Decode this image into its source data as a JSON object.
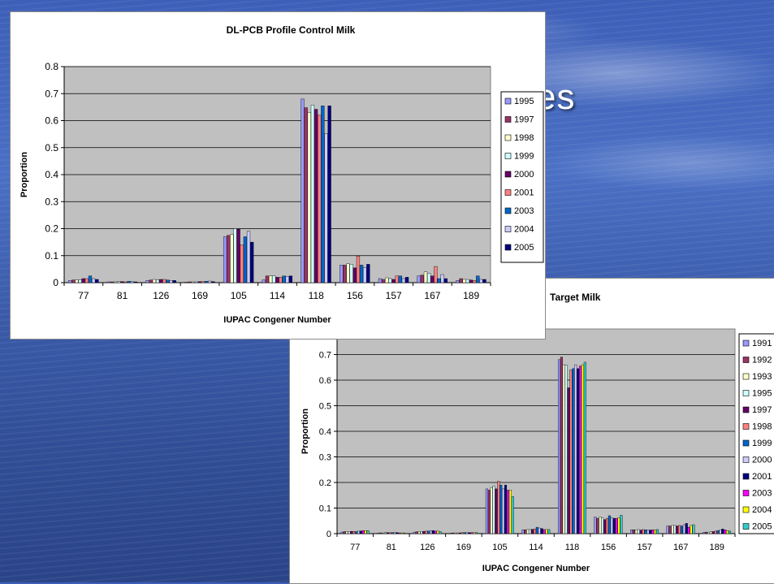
{
  "background": {
    "title_fragment": "es",
    "colors": {
      "sky": "#4a6fc4",
      "water": "#2f4c94"
    }
  },
  "charts": [
    {
      "id": "chart1",
      "chart_data": {
        "type": "bar",
        "title": "DL-PCB Profile Control Milk",
        "xlabel": "IUPAC Congener Number",
        "ylabel": "Proportion",
        "ylim": [
          0,
          0.8
        ],
        "yticks": [
          "0",
          "0.1",
          "0.2",
          "0.3",
          "0.4",
          "0.5",
          "0.6",
          "0.7",
          "0.8"
        ],
        "grid": true,
        "legend_position": "right",
        "categories": [
          "77",
          "81",
          "126",
          "169",
          "105",
          "114",
          "118",
          "156",
          "157",
          "167",
          "189"
        ],
        "series": [
          {
            "name": "1995",
            "color": "#9999ff",
            "values": [
              0.008,
              0.003,
              0.008,
              0.002,
              0.17,
              0.01,
              0.68,
              0.065,
              0.015,
              0.025,
              0.008
            ]
          },
          {
            "name": "1997",
            "color": "#993366",
            "values": [
              0.01,
              0.003,
              0.01,
              0.003,
              0.175,
              0.025,
              0.648,
              0.065,
              0.012,
              0.028,
              0.015
            ]
          },
          {
            "name": "1998",
            "color": "#ffffcc",
            "values": [
              0.01,
              0.003,
              0.012,
              0.003,
              0.178,
              0.025,
              0.63,
              0.07,
              0.018,
              0.04,
              0.012
            ]
          },
          {
            "name": "1999",
            "color": "#ccffff",
            "values": [
              0.01,
              0.004,
              0.01,
              0.003,
              0.2,
              0.025,
              0.658,
              0.068,
              0.015,
              0.035,
              0.012
            ]
          },
          {
            "name": "2000",
            "color": "#660066",
            "values": [
              0.015,
              0.004,
              0.012,
              0.004,
              0.198,
              0.02,
              0.642,
              0.055,
              0.012,
              0.025,
              0.01
            ]
          },
          {
            "name": "2001",
            "color": "#ff8080",
            "values": [
              0.015,
              0.003,
              0.012,
              0.004,
              0.14,
              0.02,
              0.62,
              0.098,
              0.025,
              0.06,
              0.008
            ]
          },
          {
            "name": "2003",
            "color": "#0066cc",
            "values": [
              0.025,
              0.005,
              0.01,
              0.005,
              0.17,
              0.025,
              0.655,
              0.065,
              0.025,
              0.015,
              0.025
            ]
          },
          {
            "name": "2004",
            "color": "#ccccff",
            "values": [
              0.015,
              0.004,
              0.008,
              0.006,
              0.19,
              0.022,
              0.552,
              0.055,
              0.015,
              0.03,
              0.012
            ]
          },
          {
            "name": "2005",
            "color": "#000080",
            "values": [
              0.012,
              0.003,
              0.008,
              0.004,
              0.15,
              0.025,
              0.655,
              0.068,
              0.02,
              0.015,
              0.012
            ]
          }
        ]
      }
    },
    {
      "id": "chart2",
      "chart_data": {
        "type": "bar",
        "title": "Target Milk",
        "xlabel": "IUPAC Congener Number",
        "ylabel": "Proportion",
        "ylim": [
          0,
          0.8
        ],
        "yticks": [
          "0",
          "0.1",
          "0.2",
          "0.3",
          "0.4",
          "0.5",
          "0.6",
          "0.7"
        ],
        "grid": true,
        "legend_position": "right",
        "categories": [
          "77",
          "81",
          "126",
          "169",
          "105",
          "114",
          "118",
          "156",
          "157",
          "167",
          "189"
        ],
        "series": [
          {
            "name": "1991",
            "color": "#9999ff",
            "values": [
              0.006,
              0.003,
              0.006,
              0.002,
              0.175,
              0.015,
              0.68,
              0.065,
              0.015,
              0.03,
              0.005
            ]
          },
          {
            "name": "1992",
            "color": "#993366",
            "values": [
              0.008,
              0.003,
              0.007,
              0.003,
              0.17,
              0.015,
              0.69,
              0.06,
              0.015,
              0.03,
              0.006
            ]
          },
          {
            "name": "1993",
            "color": "#ffffcc",
            "values": [
              0.008,
              0.003,
              0.008,
              0.003,
              0.18,
              0.016,
              0.66,
              0.065,
              0.015,
              0.032,
              0.006
            ]
          },
          {
            "name": "1995",
            "color": "#ccffff",
            "values": [
              0.008,
              0.004,
              0.008,
              0.003,
              0.185,
              0.016,
              0.658,
              0.062,
              0.016,
              0.032,
              0.007
            ]
          },
          {
            "name": "1997",
            "color": "#660066",
            "values": [
              0.009,
              0.004,
              0.009,
              0.003,
              0.175,
              0.017,
              0.57,
              0.055,
              0.014,
              0.03,
              0.008
            ]
          },
          {
            "name": "1998",
            "color": "#ff8080",
            "values": [
              0.009,
              0.004,
              0.01,
              0.004,
              0.205,
              0.018,
              0.64,
              0.06,
              0.016,
              0.032,
              0.01
            ]
          },
          {
            "name": "1999",
            "color": "#0066cc",
            "values": [
              0.008,
              0.004,
              0.01,
              0.004,
              0.19,
              0.025,
              0.645,
              0.07,
              0.015,
              0.03,
              0.012
            ]
          },
          {
            "name": "2000",
            "color": "#ccccff",
            "values": [
              0.01,
              0.004,
              0.012,
              0.004,
              0.175,
              0.022,
              0.66,
              0.062,
              0.015,
              0.035,
              0.015
            ]
          },
          {
            "name": "2001",
            "color": "#000080",
            "values": [
              0.01,
              0.004,
              0.012,
              0.004,
              0.19,
              0.02,
              0.645,
              0.06,
              0.014,
              0.04,
              0.018
            ]
          },
          {
            "name": "2003",
            "color": "#ff00ff",
            "values": [
              0.012,
              0.003,
              0.01,
              0.004,
              0.17,
              0.016,
              0.655,
              0.06,
              0.015,
              0.025,
              0.015
            ]
          },
          {
            "name": "2004",
            "color": "#ffff00",
            "values": [
              0.012,
              0.003,
              0.01,
              0.004,
              0.17,
              0.016,
              0.66,
              0.062,
              0.015,
              0.032,
              0.012
            ]
          },
          {
            "name": "2005",
            "color": "#33cccc",
            "values": [
              0.012,
              0.003,
              0.008,
              0.004,
              0.145,
              0.016,
              0.67,
              0.072,
              0.016,
              0.035,
              0.01
            ]
          }
        ]
      }
    }
  ]
}
